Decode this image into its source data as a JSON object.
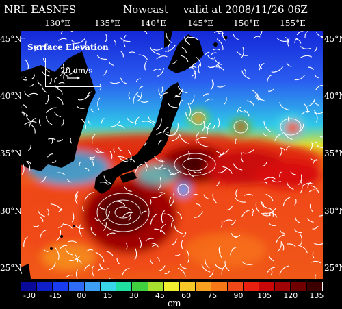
{
  "header": {
    "org": "NRL EASNFS",
    "product": "Nowcast",
    "valid": "valid at 2008/11/26 06Z"
  },
  "axes": {
    "lon_labels": [
      "130°E",
      "135°E",
      "140°E",
      "145°E",
      "150°E",
      "155°E"
    ],
    "lat_labels": [
      "45°N",
      "40°N",
      "35°N",
      "30°N",
      "25°N"
    ]
  },
  "legend": {
    "field": "Surface Elevation",
    "vector_scale": "20 cm/s"
  },
  "colorbar": {
    "ticks": [
      "-30",
      "-15",
      "00",
      "15",
      "30",
      "45",
      "60",
      "75",
      "90",
      "105",
      "120",
      "135"
    ],
    "unit": "cm",
    "colors": [
      "#0a0a9a",
      "#1020c8",
      "#1a3cf0",
      "#2e6cf6",
      "#3ea0f4",
      "#38d6e8",
      "#20e0a0",
      "#40d040",
      "#a8e030",
      "#f0f030",
      "#f8c828",
      "#f8a020",
      "#f87818",
      "#f04818",
      "#e82010",
      "#c80808",
      "#a00404",
      "#700000",
      "#3c0000"
    ]
  },
  "colors": {
    "land": "#000000",
    "background": "#000000",
    "vectors": "#ffffff"
  }
}
